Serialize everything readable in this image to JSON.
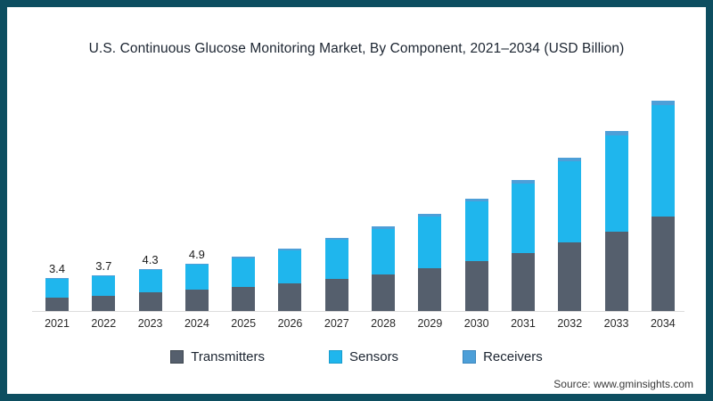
{
  "title": "U.S. Continuous Glucose Monitoring Market, By Component, 2021–2034 (USD Billion)",
  "source": "Source: www.gminsights.com",
  "colors": {
    "frame_border": "#0d4e60",
    "background": "#ffffff",
    "axis_line": "#dcdcdc",
    "transmitters": "#555f6d",
    "sensors": "#1fb6ed",
    "receivers": "#4d9fd8"
  },
  "legend": {
    "items": [
      {
        "label": "Transmitters",
        "color": "#555f6d",
        "border": "#3e4750"
      },
      {
        "label": "Sensors",
        "color": "#1fb6ed",
        "border": "#189ccc"
      },
      {
        "label": "Receivers",
        "color": "#4d9fd8",
        "border": "#3a86bd"
      }
    ]
  },
  "chart_data": {
    "type": "bar",
    "stacked": true,
    "title": "U.S. Continuous Glucose Monitoring Market, By Component, 2021–2034 (USD Billion)",
    "xlabel": "",
    "ylabel": "USD Billion",
    "y_axis_visible": false,
    "grid": false,
    "legend_position": "bottom",
    "ylim": [
      0,
      23
    ],
    "categories": [
      "2021",
      "2022",
      "2023",
      "2024",
      "2025",
      "2026",
      "2027",
      "2028",
      "2029",
      "2030",
      "2031",
      "2032",
      "2033",
      "2034"
    ],
    "series": [
      {
        "name": "Transmitters",
        "color": "#555f6d",
        "values": [
          1.4,
          1.6,
          1.9,
          2.2,
          2.45,
          2.8,
          3.3,
          3.8,
          4.45,
          5.1,
          6.0,
          7.05,
          8.2,
          9.7
        ]
      },
      {
        "name": "Sensors",
        "color": "#1fb6ed",
        "values": [
          1.9,
          2.0,
          2.3,
          2.55,
          3.0,
          3.4,
          4.0,
          4.65,
          5.3,
          6.2,
          7.15,
          8.35,
          9.85,
          11.45
        ]
      },
      {
        "name": "Receivers",
        "color": "#4d9fd8",
        "values": [
          0.1,
          0.1,
          0.1,
          0.15,
          0.15,
          0.2,
          0.2,
          0.25,
          0.25,
          0.3,
          0.35,
          0.4,
          0.45,
          0.55
        ]
      }
    ],
    "totals": [
      3.4,
      3.7,
      4.3,
      4.9,
      5.6,
      6.4,
      7.5,
      8.7,
      10.0,
      11.6,
      13.5,
      15.8,
      18.5,
      21.7
    ],
    "bar_value_labels": [
      "3.4",
      "3.7",
      "4.3",
      "4.9",
      "",
      "",
      "",
      "",
      "",
      "",
      "",
      "",
      "",
      ""
    ]
  }
}
